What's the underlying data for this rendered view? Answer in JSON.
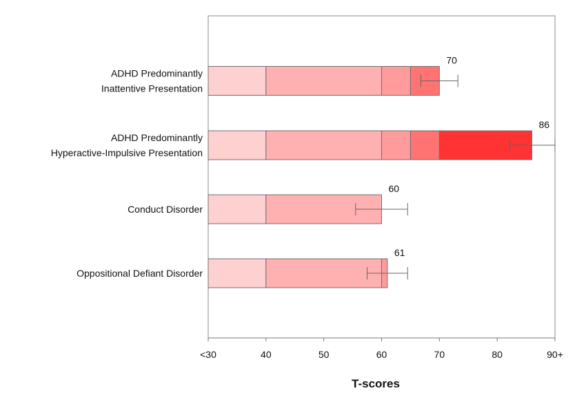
{
  "chart_data": {
    "type": "bar",
    "orientation": "horizontal",
    "xlabel": "T-scores",
    "xlim": [
      30,
      90
    ],
    "xticks": [
      30,
      40,
      50,
      60,
      70,
      80,
      90
    ],
    "xtick_labels": [
      "<30",
      "40",
      "50",
      "60",
      "70",
      "80",
      "90+"
    ],
    "grid": false,
    "categories": [
      "ADHD Predominantly\nInattentive Presentation",
      "ADHD Predominantly\nHyperactive-Impulsive Presentation",
      "Conduct Disorder",
      "Oppositional Defiant Disorder"
    ],
    "values": [
      70,
      86,
      60,
      61
    ],
    "value_labels": [
      "70",
      "86",
      "60",
      "61"
    ],
    "error_bars": [
      {
        "low": 66.8,
        "high": 73.2
      },
      {
        "low": 82.2,
        "high": 90.0
      },
      {
        "low": 55.5,
        "high": 64.5
      },
      {
        "low": 57.5,
        "high": 64.5
      }
    ],
    "color_bands": [
      {
        "from": 30,
        "to": 40,
        "color": "#ffd0d0"
      },
      {
        "from": 40,
        "to": 60,
        "color": "#ffb1b1"
      },
      {
        "from": 60,
        "to": 65,
        "color": "#ff9b9b"
      },
      {
        "from": 65,
        "to": 70,
        "color": "#ff7373"
      },
      {
        "from": 70,
        "to": 90,
        "color": "#ff3333"
      }
    ]
  }
}
